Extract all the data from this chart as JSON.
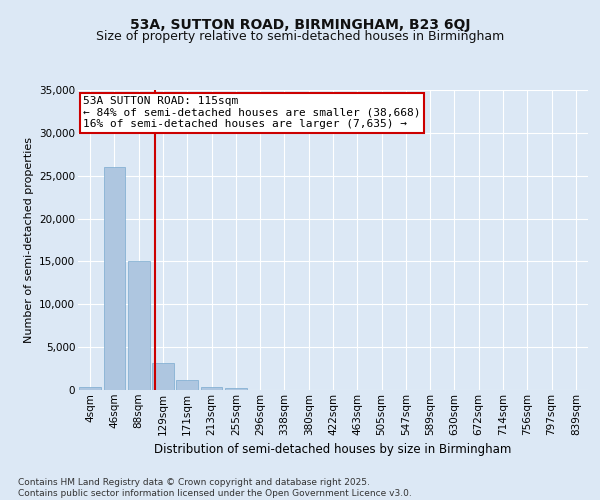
{
  "title1": "53A, SUTTON ROAD, BIRMINGHAM, B23 6QJ",
  "title2": "Size of property relative to semi-detached houses in Birmingham",
  "xlabel": "Distribution of semi-detached houses by size in Birmingham",
  "ylabel": "Number of semi-detached properties",
  "categories": [
    "4sqm",
    "46sqm",
    "88sqm",
    "129sqm",
    "171sqm",
    "213sqm",
    "255sqm",
    "296sqm",
    "338sqm",
    "380sqm",
    "422sqm",
    "463sqm",
    "505sqm",
    "547sqm",
    "589sqm",
    "630sqm",
    "672sqm",
    "714sqm",
    "756sqm",
    "797sqm",
    "839sqm"
  ],
  "values": [
    400,
    26000,
    15000,
    3200,
    1200,
    400,
    200,
    0,
    0,
    0,
    0,
    0,
    0,
    0,
    0,
    0,
    0,
    0,
    0,
    0,
    0
  ],
  "bar_color": "#aec6e0",
  "bar_edge_color": "#7aaacf",
  "background_color": "#dce8f5",
  "fig_background_color": "#dce8f5",
  "grid_color": "#ffffff",
  "vline_x": 2.65,
  "vline_color": "#cc0000",
  "annotation_line1": "53A SUTTON ROAD: 115sqm",
  "annotation_line2": "← 84% of semi-detached houses are smaller (38,668)",
  "annotation_line3": "16% of semi-detached houses are larger (7,635) →",
  "annotation_edge_color": "#cc0000",
  "ylim": [
    0,
    35000
  ],
  "yticks": [
    0,
    5000,
    10000,
    15000,
    20000,
    25000,
    30000,
    35000
  ],
  "footnote": "Contains HM Land Registry data © Crown copyright and database right 2025.\nContains public sector information licensed under the Open Government Licence v3.0.",
  "title1_fontsize": 10,
  "title2_fontsize": 9,
  "xlabel_fontsize": 8.5,
  "ylabel_fontsize": 8,
  "tick_fontsize": 7.5,
  "annot_fontsize": 8,
  "footnote_fontsize": 6.5
}
